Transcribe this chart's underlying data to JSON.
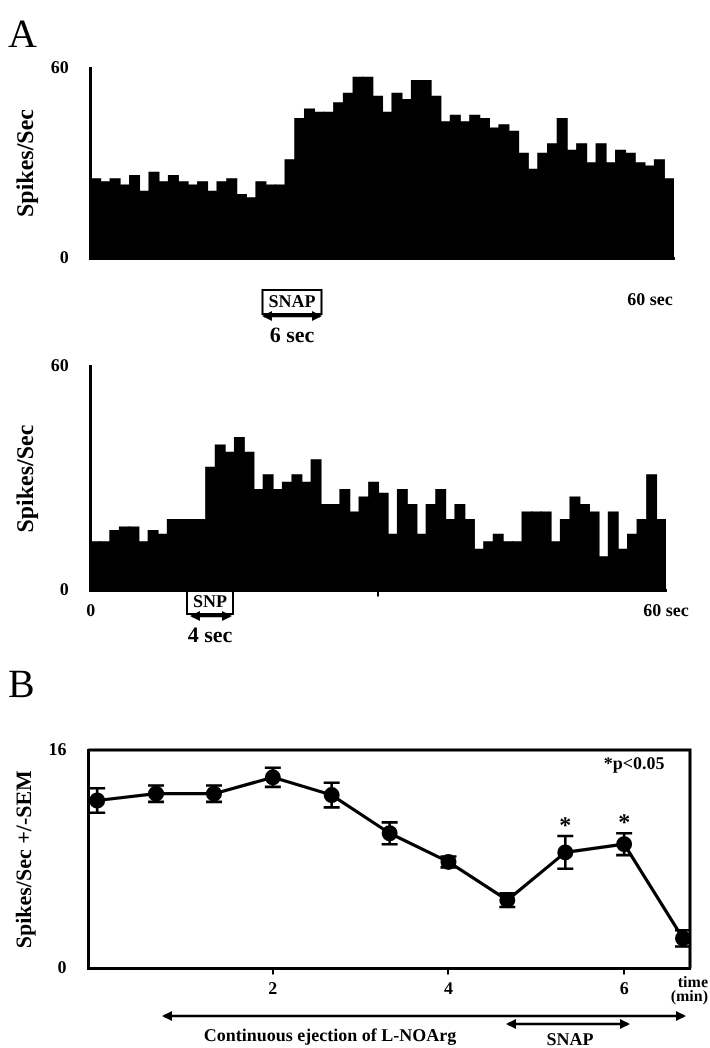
{
  "chart_data": [
    {
      "type": "bar",
      "title": "A",
      "ylabel": "Spikes/Sec",
      "categories": [
        null,
        null,
        null,
        null,
        null,
        null,
        null,
        null,
        null,
        null,
        null,
        null,
        null,
        null,
        null,
        null,
        null,
        null,
        null,
        null,
        null,
        null,
        null,
        null,
        null,
        null,
        null,
        null,
        null,
        null,
        null,
        null,
        null,
        null,
        null,
        null,
        null,
        null,
        null,
        null,
        null,
        null,
        null,
        null,
        null,
        null,
        null,
        null,
        null,
        null,
        null,
        null,
        null,
        null,
        null,
        null,
        null,
        null,
        null,
        null
      ],
      "values": [
        25,
        24,
        25,
        23,
        26,
        21,
        27,
        24,
        26,
        24,
        23,
        24,
        21,
        24,
        25,
        20,
        19,
        24,
        23,
        23,
        31,
        44,
        47,
        46,
        46,
        49,
        52,
        57,
        57,
        51,
        46,
        52,
        50,
        56,
        56,
        51,
        43,
        45,
        43,
        45,
        44,
        41,
        42,
        40,
        33,
        28,
        33,
        36,
        44,
        34,
        36,
        30,
        36,
        30,
        34,
        33,
        30,
        29,
        31,
        25
      ],
      "color": "#000000",
      "ylim": [
        0,
        60
      ],
      "yticks": [
        0,
        60
      ],
      "annotations": [
        "60 sec",
        "SNAP",
        "6 sec"
      ]
    },
    {
      "type": "histogram",
      "ylabel": "Spikes/Sec",
      "bins": [
        0,
        1,
        2,
        3,
        4,
        5,
        6,
        7,
        8,
        9,
        10,
        11,
        12,
        13,
        14,
        15,
        16,
        17,
        18,
        19,
        20,
        21,
        22,
        23,
        24,
        25,
        26,
        27,
        28,
        29,
        30,
        31,
        32,
        33,
        34,
        35,
        36,
        37,
        38,
        39,
        40,
        41,
        42,
        43,
        44,
        45,
        46,
        47,
        48,
        49,
        50,
        51,
        52,
        53,
        54,
        55,
        56,
        57,
        58,
        59,
        60
      ],
      "values": [
        13,
        13,
        16,
        17,
        17,
        13,
        16,
        15,
        19,
        19,
        19,
        19,
        33,
        39,
        37,
        41,
        37,
        27,
        31,
        27,
        29,
        31,
        29,
        35,
        23,
        23,
        27,
        21,
        25,
        29,
        26,
        15,
        27,
        23,
        15,
        23,
        27,
        19,
        23,
        19,
        11,
        13,
        15,
        13,
        13,
        21,
        21,
        21,
        13,
        19,
        25,
        23,
        21,
        9,
        21,
        11,
        15,
        19,
        31,
        19
      ],
      "color": "#000000",
      "xlim": [
        0,
        60
      ],
      "xticks": [
        0,
        {
          "value": 60,
          "label": "60 sec"
        }
      ],
      "ylim": [
        0,
        60
      ],
      "yticks": [
        0,
        60
      ],
      "annotations": [
        "SNP",
        "4 sec"
      ]
    },
    {
      "type": "line",
      "title": "B",
      "ylabel": "Spikes/Sec +/-SEM",
      "xlabel": "time (min)",
      "marker": "circle",
      "x": [
        0,
        0.67,
        1.33,
        2,
        2.67,
        3.33,
        4,
        4.67,
        5.33,
        6,
        6.67
      ],
      "series": [
        {
          "color": "#000000",
          "values": [
            12.3,
            12.8,
            12.8,
            14,
            12.7,
            9.9,
            7.8,
            5,
            8.5,
            9.1,
            2.2
          ],
          "errors": [
            0.9,
            0.6,
            0.6,
            0.7,
            0.9,
            0.8,
            0.4,
            0.5,
            1.2,
            0.8,
            0.6
          ]
        }
      ],
      "xlim": [
        -0.1,
        6.75
      ],
      "xticks": [
        2,
        4,
        6
      ],
      "ylim": [
        0,
        16
      ],
      "yticks": [
        0,
        16
      ],
      "annotations": [
        "*p<0.05",
        {
          "text": "*",
          "x": 5.33,
          "y": 10.1
        },
        {
          "text": "*",
          "x": 6,
          "y": 10.3
        },
        "Continuous ejection of L-NOArg",
        "SNAP"
      ]
    }
  ]
}
